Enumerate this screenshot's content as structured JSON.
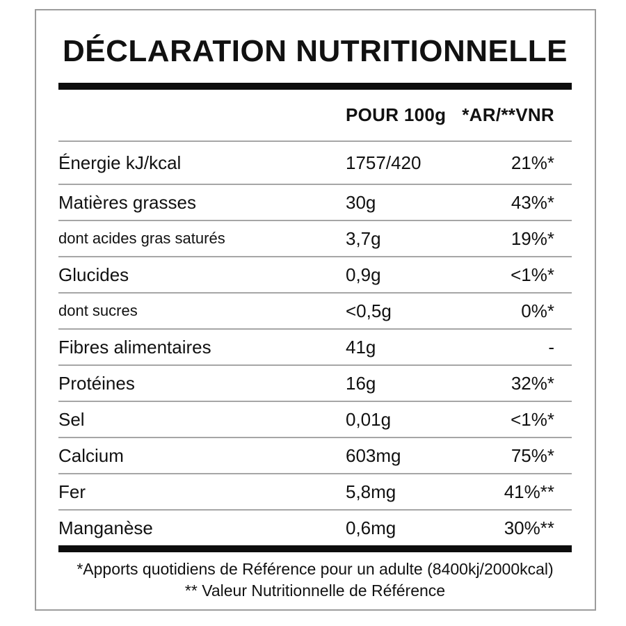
{
  "title": "DÉCLARATION NUTRITIONNELLE",
  "table": {
    "columns": {
      "amount": "POUR 100g",
      "reference": "*AR/**VNR"
    },
    "rows": [
      {
        "label": "Énergie kJ/kcal",
        "amount": "1757/420",
        "ref": "21%*",
        "sub": false
      },
      {
        "label": "Matières grasses",
        "amount": "30g",
        "ref": "43%*",
        "sub": false
      },
      {
        "label": "dont acides gras saturés",
        "amount": "3,7g",
        "ref": "19%*",
        "sub": true
      },
      {
        "label": "Glucides",
        "amount": "0,9g",
        "ref": "<1%*",
        "sub": false
      },
      {
        "label": "dont sucres",
        "amount": "<0,5g",
        "ref": "0%*",
        "sub": true
      },
      {
        "label": "Fibres alimentaires",
        "amount": "41g",
        "ref": "-",
        "sub": false
      },
      {
        "label": "Protéines",
        "amount": "16g",
        "ref": "32%*",
        "sub": false
      },
      {
        "label": "Sel",
        "amount": "0,01g",
        "ref": "<1%*",
        "sub": false
      },
      {
        "label": "Calcium",
        "amount": "603mg",
        "ref": "75%*",
        "sub": false
      },
      {
        "label": "Fer",
        "amount": "5,8mg",
        "ref": "41%**",
        "sub": false
      },
      {
        "label": "Manganèse",
        "amount": "0,6mg",
        "ref": "30%**",
        "sub": false
      }
    ]
  },
  "footnotes": [
    "*Apports quotidiens de Référence pour un adulte (8400kj/2000kcal)",
    "** Valeur Nutritionnelle de Référence"
  ],
  "colors": {
    "text": "#111111",
    "thick_rule": "#0d0d0d",
    "separator": "#a6a6a6",
    "card_border": "#9c9c9c",
    "background": "#ffffff"
  }
}
